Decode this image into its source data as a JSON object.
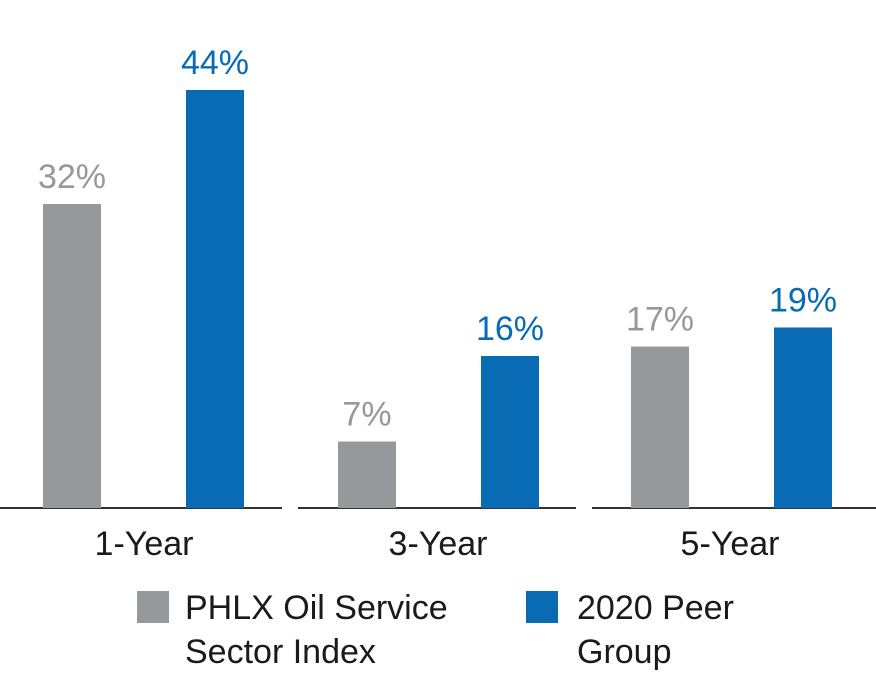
{
  "chart_data": {
    "type": "bar",
    "title": "",
    "xlabel": "",
    "ylabel": "",
    "ylim": [
      0,
      50
    ],
    "categories": [
      "1-Year",
      "3-Year",
      "5-Year"
    ],
    "series": [
      {
        "name": "PHLX Oil Service Sector Index",
        "legend_lines": [
          "PHLX Oil Service",
          "Sector Index"
        ],
        "color": "#97989b",
        "values": [
          32,
          7,
          17
        ],
        "labels": [
          "32%",
          "7%",
          "17%"
        ]
      },
      {
        "name": "2020 Peer Group",
        "legend_lines": [
          "2020 Peer",
          "Group"
        ],
        "color": "#0a6bb5",
        "values": [
          44,
          16,
          19
        ],
        "labels": [
          "44%",
          "16%",
          "19%"
        ]
      }
    ],
    "legend_position": "bottom",
    "grid": false
  }
}
